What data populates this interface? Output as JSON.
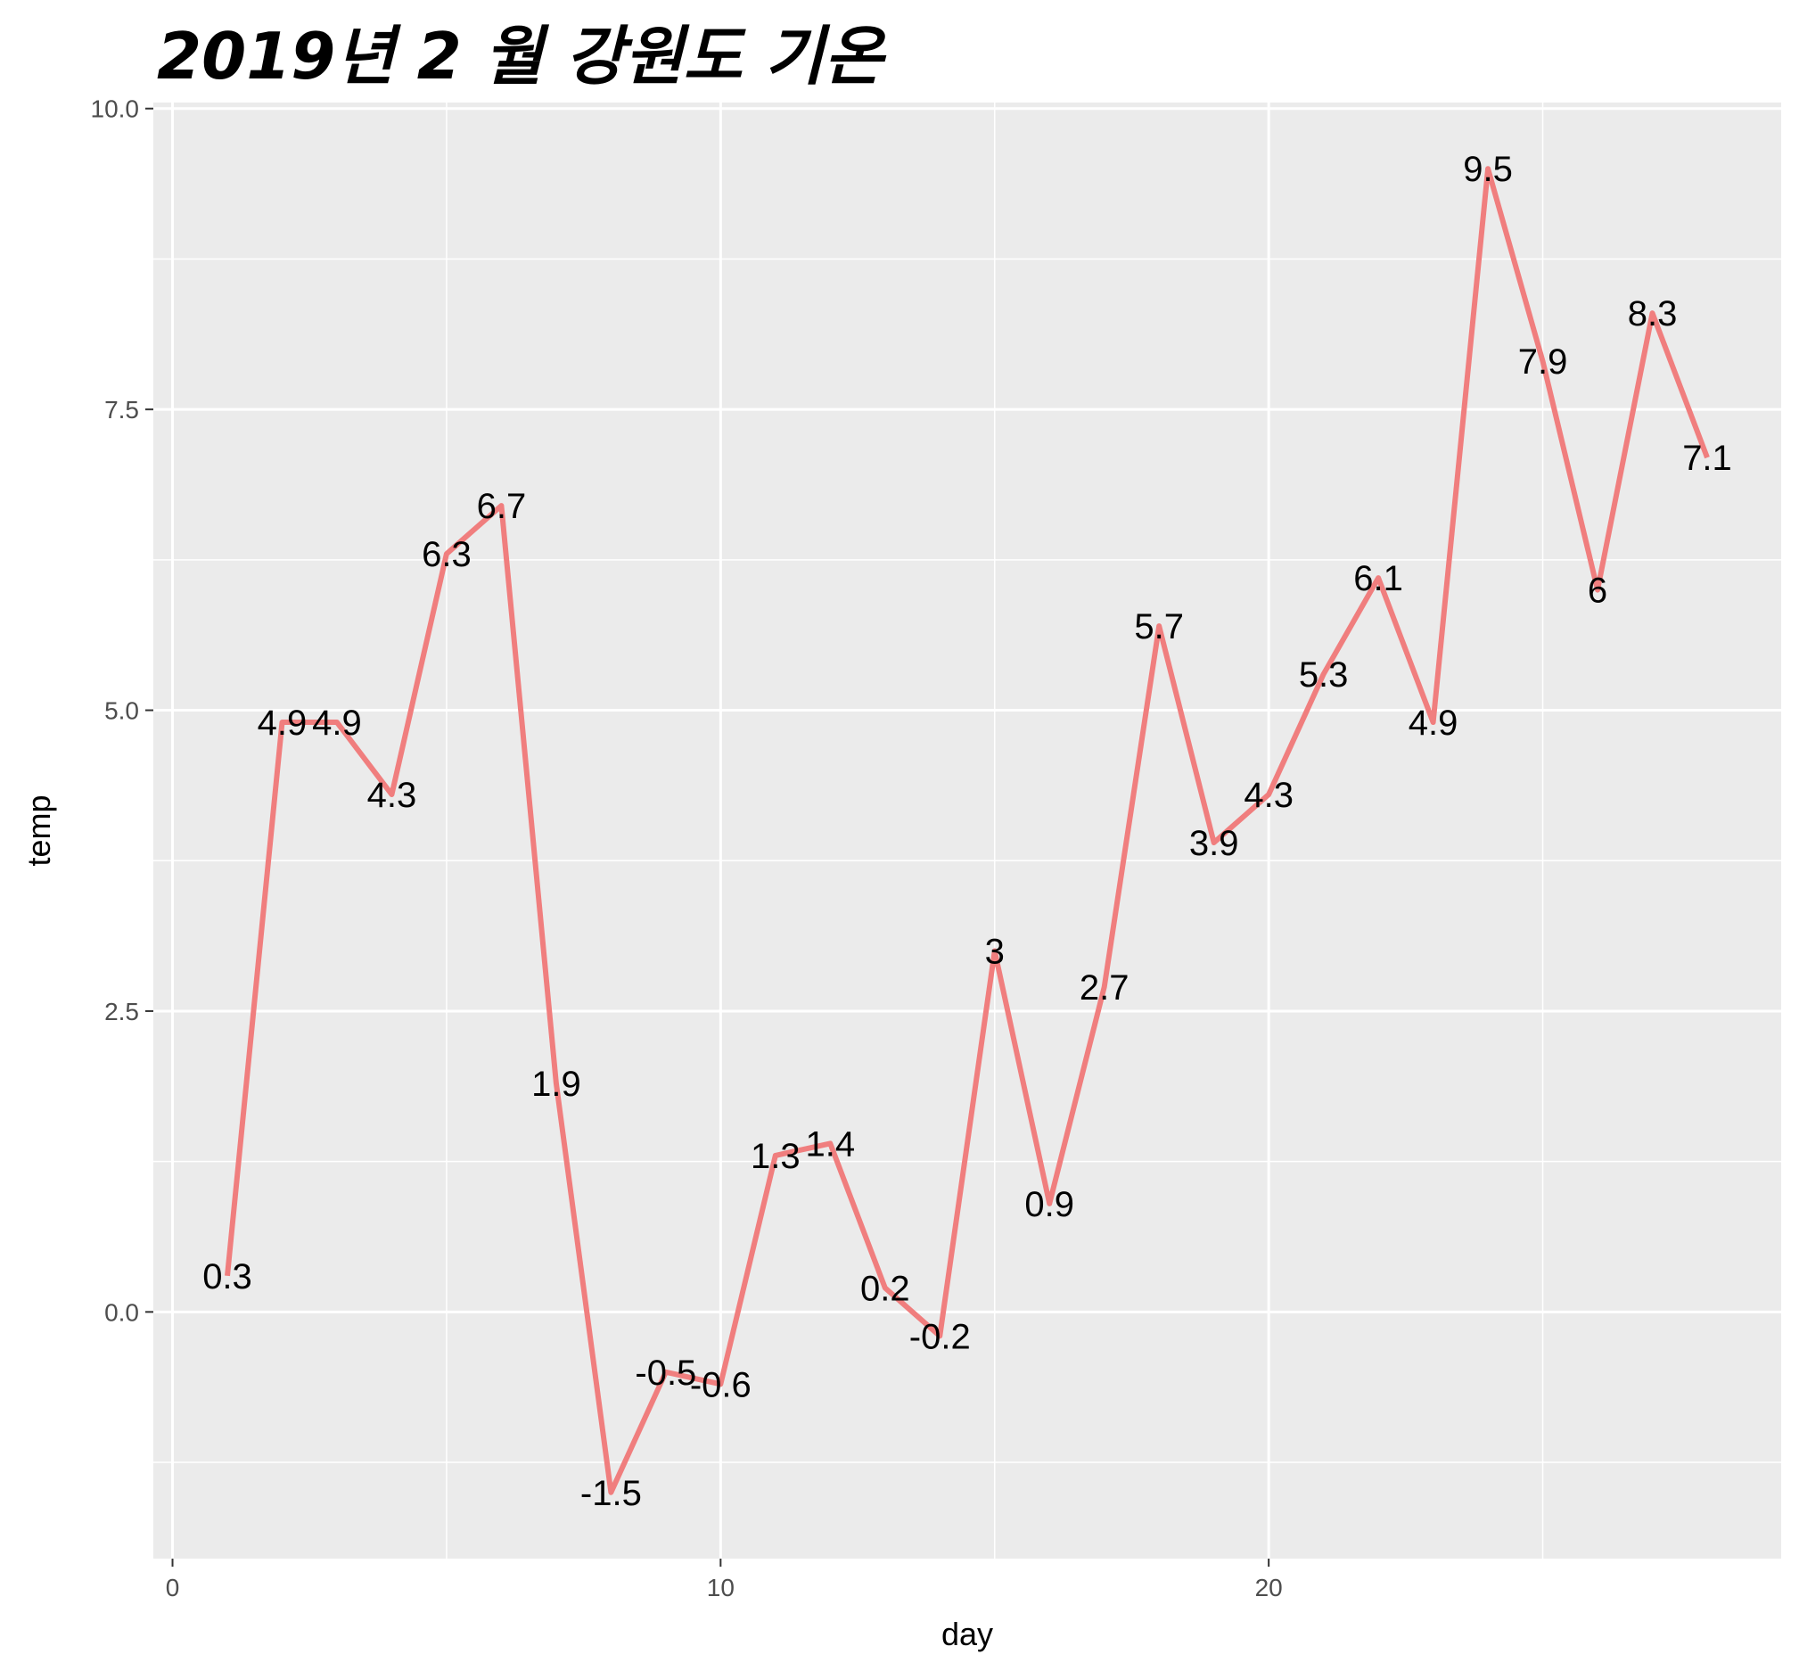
{
  "chart_data": {
    "type": "line",
    "title": "2019년 2 월 강원도 기온",
    "xlabel": "day",
    "ylabel": "temp",
    "x": [
      1,
      2,
      3,
      4,
      5,
      6,
      7,
      8,
      9,
      10,
      11,
      12,
      13,
      14,
      15,
      16,
      17,
      18,
      19,
      20,
      21,
      22,
      23,
      24,
      25,
      26,
      27,
      28
    ],
    "values": [
      0.3,
      4.9,
      4.9,
      4.3,
      6.3,
      6.7,
      1.9,
      -1.5,
      -0.5,
      -0.6,
      1.3,
      1.4,
      0.2,
      -0.2,
      3,
      0.9,
      2.7,
      5.7,
      3.9,
      4.3,
      5.3,
      6.1,
      4.9,
      9.5,
      7.9,
      6,
      8.3,
      7.1
    ],
    "labels": [
      "0.3",
      "4.9",
      "4.9",
      "4.3",
      "6.3",
      "6.7",
      "1.9",
      "-1.5",
      "-0.5",
      "-0.6",
      "1.3",
      "1.4",
      "0.2",
      "-0.2",
      "3",
      "0.9",
      "2.7",
      "5.7",
      "3.9",
      "4.3",
      "5.3",
      "6.1",
      "4.9",
      "9.5",
      "7.9",
      "6",
      "8.3",
      "7.1"
    ],
    "xlim": [
      -0.35,
      29.35
    ],
    "ylim": [
      -2.05,
      10.05
    ],
    "x_ticks": [
      0,
      10,
      20
    ],
    "x_tick_labels": [
      "0",
      "10",
      "20"
    ],
    "y_ticks": [
      0,
      2.5,
      5,
      7.5,
      10
    ],
    "y_tick_labels": [
      "0.0",
      "2.5",
      "5.0",
      "7.5",
      "10.0"
    ],
    "grid": true,
    "legend": "none",
    "colors": {
      "line": "#F07E7E",
      "panel_background": "#EBEBEB",
      "grid": "#FFFFFF",
      "text": "#000000",
      "tick_text": "#4D4D4D"
    }
  }
}
